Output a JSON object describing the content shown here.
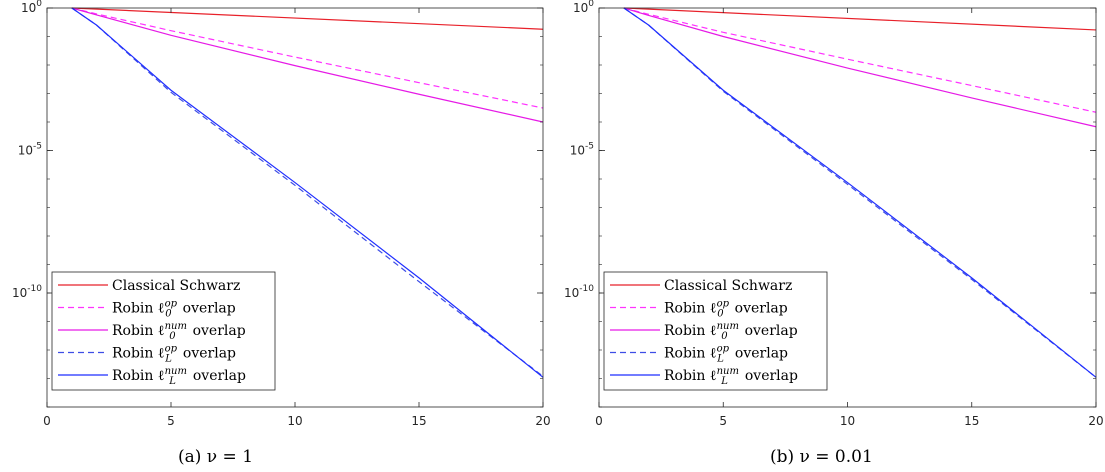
{
  "chart_data": [
    {
      "type": "line",
      "caption": "(a) ν = 1",
      "x_ticks": [
        0,
        5,
        10,
        15,
        20
      ],
      "xlim": [
        0,
        20
      ],
      "y_scale": "log",
      "ylim": [
        1e-14,
        1
      ],
      "y_ticks": [
        {
          "value": 1,
          "base": "10",
          "exp": "0"
        },
        {
          "value": 1e-05,
          "base": "10",
          "exp": "-5"
        },
        {
          "value": 1e-10,
          "base": "10",
          "exp": "-10"
        }
      ],
      "legend_position": "bottom-left",
      "series": [
        {
          "name": "Classical Schwarz",
          "name_parts": {
            "pre": "Classical Schwarz",
            "sup": "",
            "sub": "",
            "post": ""
          },
          "color": "#e8212a",
          "dash": "solid",
          "x": [
            1,
            20
          ],
          "y": [
            1,
            0.18
          ]
        },
        {
          "name": "Robin ℓ0op overlap",
          "name_parts": {
            "pre": "Robin ℓ",
            "sup": "op",
            "sub": "0",
            "post": " overlap"
          },
          "color": "#ff33ff",
          "dash": "dashed",
          "x": [
            1,
            2,
            5,
            10,
            15,
            20
          ],
          "y": [
            1,
            0.62,
            0.16,
            0.019,
            0.0024,
            0.00031
          ]
        },
        {
          "name": "Robin ℓ0num overlap",
          "name_parts": {
            "pre": "Robin ℓ",
            "sup": "num",
            "sub": "0",
            "post": " overlap"
          },
          "color": "#e61ae6",
          "dash": "solid",
          "x": [
            1,
            2,
            5,
            10,
            15,
            20
          ],
          "y": [
            1,
            0.57,
            0.11,
            0.0095,
            0.00094,
            0.0001
          ]
        },
        {
          "name": "Robin ℓLop overlap",
          "name_parts": {
            "pre": "Robin ℓ",
            "sup": "op",
            "sub": "L",
            "post": " overlap"
          },
          "color": "#3d4de6",
          "dash": "dashed",
          "x": [
            1,
            2,
            5,
            10,
            15,
            20
          ],
          "y": [
            1,
            0.25,
            0.0011,
            6e-07,
            2.5e-10,
            1.2e-13
          ]
        },
        {
          "name": "Robin ℓLnum overlap",
          "name_parts": {
            "pre": "Robin ℓ",
            "sup": "num",
            "sub": "L",
            "post": " overlap"
          },
          "color": "#1f2eff",
          "dash": "solid",
          "x": [
            1,
            2,
            5,
            10,
            15,
            20
          ],
          "y": [
            1,
            0.25,
            0.0013,
            7.5e-07,
            3.4e-10,
            1.1e-13
          ]
        }
      ]
    },
    {
      "type": "line",
      "caption": "(b) ν = 0.01",
      "x_ticks": [
        0,
        5,
        10,
        15,
        20
      ],
      "xlim": [
        0,
        20
      ],
      "y_scale": "log",
      "ylim": [
        1e-14,
        1
      ],
      "y_ticks": [
        {
          "value": 1,
          "base": "10",
          "exp": "0"
        },
        {
          "value": 1e-05,
          "base": "10",
          "exp": "-5"
        },
        {
          "value": 1e-10,
          "base": "10",
          "exp": "-10"
        }
      ],
      "legend_position": "bottom-left",
      "series": [
        {
          "name": "Classical Schwarz",
          "name_parts": {
            "pre": "Classical Schwarz",
            "sup": "",
            "sub": "",
            "post": ""
          },
          "color": "#e8212a",
          "dash": "solid",
          "x": [
            1,
            20
          ],
          "y": [
            1,
            0.17
          ]
        },
        {
          "name": "Robin ℓ0op overlap",
          "name_parts": {
            "pre": "Robin ℓ",
            "sup": "op",
            "sub": "0",
            "post": " overlap"
          },
          "color": "#ff33ff",
          "dash": "dashed",
          "x": [
            1,
            2,
            5,
            10,
            15,
            20
          ],
          "y": [
            1,
            0.6,
            0.14,
            0.016,
            0.0019,
            0.00022
          ]
        },
        {
          "name": "Robin ℓ0num overlap",
          "name_parts": {
            "pre": "Robin ℓ",
            "sup": "num",
            "sub": "0",
            "post": " overlap"
          },
          "color": "#e61ae6",
          "dash": "solid",
          "x": [
            1,
            2,
            5,
            10,
            15,
            20
          ],
          "y": [
            1,
            0.55,
            0.1,
            0.0078,
            0.0007,
            6.8e-05
          ]
        },
        {
          "name": "Robin ℓLop overlap",
          "name_parts": {
            "pre": "Robin ℓ",
            "sup": "op",
            "sub": "L",
            "post": " overlap"
          },
          "color": "#3d4de6",
          "dash": "dashed",
          "x": [
            1,
            2,
            5,
            10,
            15,
            20
          ],
          "y": [
            1,
            0.25,
            0.0012,
            6.5e-07,
            3e-10,
            1.1e-13
          ]
        },
        {
          "name": "Robin ℓLnum overlap",
          "name_parts": {
            "pre": "Robin ℓ",
            "sup": "num",
            "sub": "L",
            "post": " overlap"
          },
          "color": "#1f2eff",
          "dash": "solid",
          "x": [
            1,
            2,
            5,
            10,
            15,
            20
          ],
          "y": [
            1,
            0.25,
            0.0013,
            7.5e-07,
            3.4e-10,
            1.1e-13
          ]
        }
      ]
    }
  ]
}
